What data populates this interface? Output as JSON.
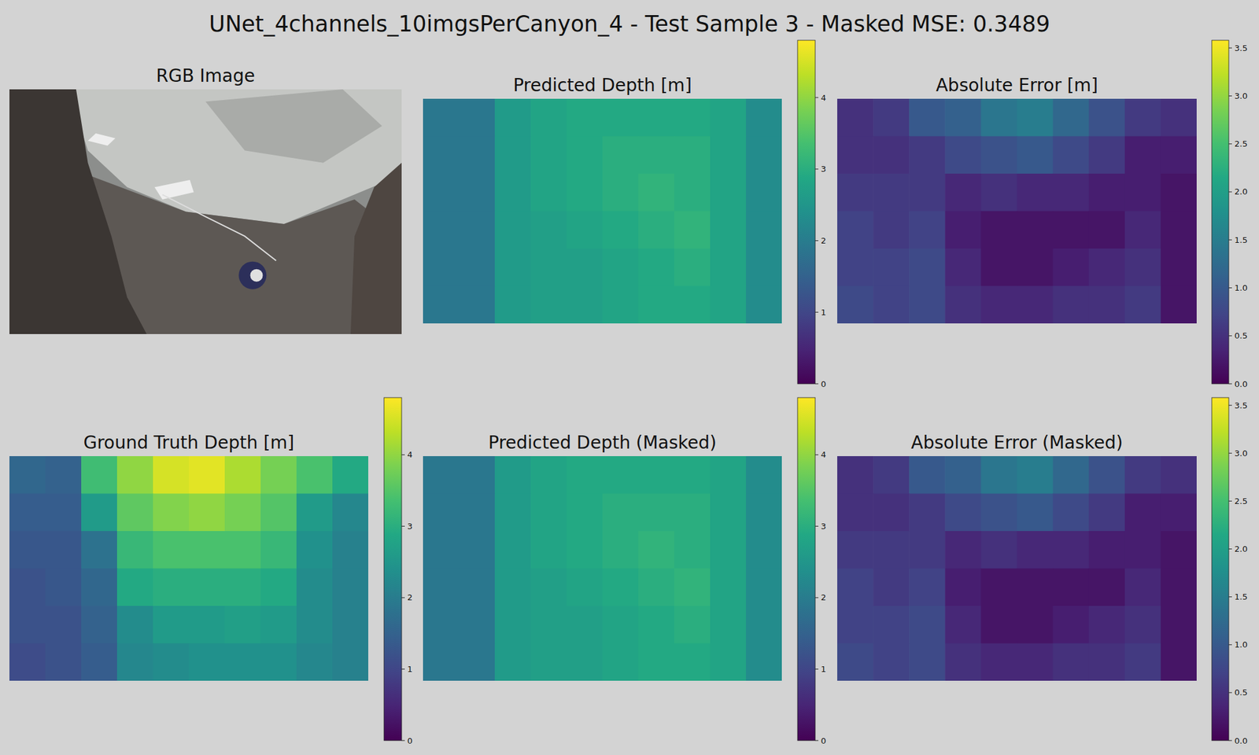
{
  "title": "UNet_4channels_10imgsPerCanyon_4 - Test Sample 3 - Masked MSE: 0.3489",
  "chart_data": [
    {
      "type": "image",
      "title": "RGB Image"
    },
    {
      "type": "heatmap",
      "title": "Predicted Depth [m]",
      "zlim": [
        0,
        4.8
      ],
      "zticks": [
        0,
        1,
        2,
        3,
        4
      ],
      "values": [
        [
          1.9,
          1.9,
          2.6,
          2.8,
          2.9,
          2.9,
          2.9,
          2.9,
          2.8,
          2.3
        ],
        [
          1.9,
          1.9,
          2.6,
          2.8,
          2.9,
          3.0,
          3.0,
          3.0,
          2.8,
          2.3
        ],
        [
          1.9,
          1.9,
          2.6,
          2.8,
          2.9,
          3.0,
          3.1,
          3.0,
          2.8,
          2.3
        ],
        [
          1.9,
          1.9,
          2.6,
          2.7,
          2.8,
          2.9,
          3.0,
          3.1,
          2.8,
          2.3
        ],
        [
          1.9,
          1.9,
          2.6,
          2.7,
          2.7,
          2.8,
          2.9,
          3.0,
          2.8,
          2.3
        ],
        [
          1.9,
          1.9,
          2.6,
          2.7,
          2.7,
          2.8,
          2.9,
          2.9,
          2.8,
          2.3
        ]
      ]
    },
    {
      "type": "heatmap",
      "title": "Absolute Error [m]",
      "zlim": [
        0,
        3.58
      ],
      "zticks": [
        {
          "value": 0,
          "label": "0.0"
        },
        {
          "value": 0.5,
          "label": "0.5"
        },
        {
          "value": 1,
          "label": "1.0"
        },
        {
          "value": 1.5,
          "label": "1.5"
        },
        {
          "value": 2,
          "label": "2.0"
        },
        {
          "value": 2.5,
          "label": "2.5"
        },
        {
          "value": 3,
          "label": "3.0"
        },
        {
          "value": 3.5,
          "label": "3.5"
        }
      ],
      "values": [
        [
          0.5,
          0.6,
          1.0,
          1.1,
          1.4,
          1.5,
          1.2,
          0.9,
          0.6,
          0.5
        ],
        [
          0.5,
          0.5,
          0.6,
          0.8,
          0.9,
          1.0,
          0.8,
          0.6,
          0.3,
          0.3
        ],
        [
          0.6,
          0.6,
          0.6,
          0.4,
          0.5,
          0.4,
          0.4,
          0.3,
          0.3,
          0.2
        ],
        [
          0.7,
          0.6,
          0.7,
          0.3,
          0.2,
          0.2,
          0.2,
          0.2,
          0.4,
          0.2
        ],
        [
          0.7,
          0.7,
          0.8,
          0.4,
          0.2,
          0.2,
          0.3,
          0.4,
          0.5,
          0.2
        ],
        [
          0.8,
          0.7,
          0.8,
          0.5,
          0.4,
          0.4,
          0.5,
          0.5,
          0.6,
          0.2
        ]
      ]
    },
    {
      "type": "heatmap",
      "title": "Ground Truth Depth [m]",
      "zlim": [
        0,
        4.8
      ],
      "zticks": [
        0,
        1,
        2,
        3,
        4
      ],
      "values": [
        [
          1.6,
          1.5,
          3.3,
          4.0,
          4.5,
          4.6,
          4.2,
          3.8,
          3.4,
          2.9
        ],
        [
          1.4,
          1.4,
          2.6,
          3.6,
          3.9,
          4.0,
          3.8,
          3.5,
          2.6,
          2.2
        ],
        [
          1.3,
          1.3,
          1.8,
          3.2,
          3.4,
          3.4,
          3.4,
          3.2,
          2.4,
          2.1
        ],
        [
          1.2,
          1.3,
          1.6,
          2.9,
          3.0,
          3.0,
          3.0,
          2.9,
          2.3,
          2.1
        ],
        [
          1.2,
          1.2,
          1.5,
          2.3,
          2.6,
          2.6,
          2.7,
          2.6,
          2.3,
          2.1
        ],
        [
          1.1,
          1.2,
          1.4,
          2.2,
          2.3,
          2.4,
          2.4,
          2.4,
          2.2,
          2.1
        ]
      ]
    },
    {
      "type": "heatmap",
      "title": "Predicted Depth (Masked)",
      "zlim": [
        0,
        4.8
      ],
      "zticks": [
        0,
        1,
        2,
        3,
        4
      ],
      "values": [
        [
          1.9,
          1.9,
          2.6,
          2.8,
          2.9,
          2.9,
          2.9,
          2.9,
          2.8,
          2.3
        ],
        [
          1.9,
          1.9,
          2.6,
          2.8,
          2.9,
          3.0,
          3.0,
          3.0,
          2.8,
          2.3
        ],
        [
          1.9,
          1.9,
          2.6,
          2.8,
          2.9,
          3.0,
          3.1,
          3.0,
          2.8,
          2.3
        ],
        [
          1.9,
          1.9,
          2.6,
          2.7,
          2.8,
          2.9,
          3.0,
          3.1,
          2.8,
          2.3
        ],
        [
          1.9,
          1.9,
          2.6,
          2.7,
          2.7,
          2.8,
          2.9,
          3.0,
          2.8,
          2.3
        ],
        [
          1.9,
          1.9,
          2.6,
          2.7,
          2.7,
          2.8,
          2.9,
          2.9,
          2.8,
          2.3
        ]
      ]
    },
    {
      "type": "heatmap",
      "title": "Absolute Error (Masked)",
      "zlim": [
        0,
        3.58
      ],
      "zticks": [
        {
          "value": 0,
          "label": "0.0"
        },
        {
          "value": 0.5,
          "label": "0.5"
        },
        {
          "value": 1,
          "label": "1.0"
        },
        {
          "value": 1.5,
          "label": "1.5"
        },
        {
          "value": 2,
          "label": "2.0"
        },
        {
          "value": 2.5,
          "label": "2.5"
        },
        {
          "value": 3,
          "label": "3.0"
        },
        {
          "value": 3.5,
          "label": "3.5"
        }
      ],
      "values": [
        [
          0.5,
          0.6,
          1.0,
          1.1,
          1.4,
          1.5,
          1.2,
          0.9,
          0.6,
          0.5
        ],
        [
          0.5,
          0.5,
          0.6,
          0.8,
          0.9,
          1.0,
          0.8,
          0.6,
          0.3,
          0.3
        ],
        [
          0.6,
          0.6,
          0.6,
          0.4,
          0.5,
          0.4,
          0.4,
          0.3,
          0.3,
          0.2
        ],
        [
          0.7,
          0.6,
          0.7,
          0.3,
          0.2,
          0.2,
          0.2,
          0.2,
          0.4,
          0.2
        ],
        [
          0.7,
          0.7,
          0.8,
          0.4,
          0.2,
          0.2,
          0.3,
          0.4,
          0.5,
          0.2
        ],
        [
          0.8,
          0.7,
          0.8,
          0.5,
          0.4,
          0.4,
          0.5,
          0.5,
          0.6,
          0.2
        ]
      ]
    }
  ]
}
